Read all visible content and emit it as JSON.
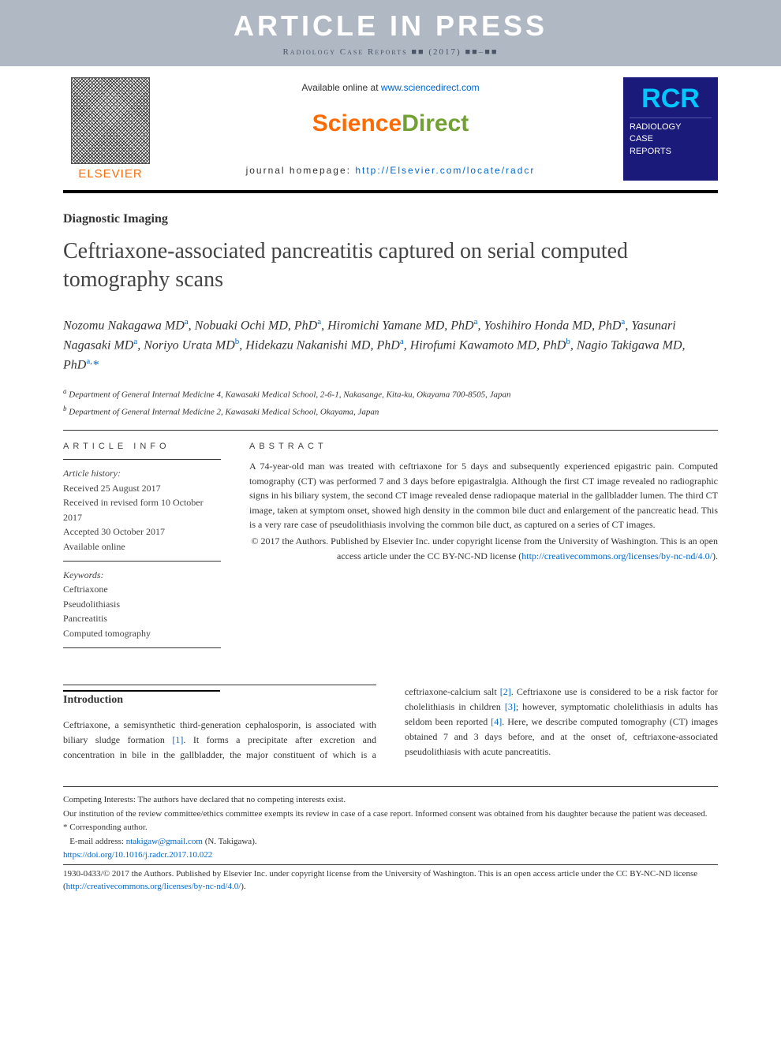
{
  "banner": {
    "aip": "ARTICLE IN PRESS",
    "citation": "Radiology Case Reports ■■ (2017) ■■–■■"
  },
  "header": {
    "available_text": "Available online at ",
    "available_link": "www.sciencedirect.com",
    "sd_logo_a": "Science",
    "sd_logo_b": "Direct",
    "homepage_label": "journal homepage: ",
    "homepage_url": "http://Elsevier.com/locate/radcr",
    "elsevier": "ELSEVIER",
    "rcr_big": "RCR",
    "rcr_l1": "RADIOLOGY",
    "rcr_l2": "CASE",
    "rcr_l3": "REPORTS"
  },
  "article": {
    "section": "Diagnostic Imaging",
    "title": "Ceftriaxone-associated pancreatitis captured on serial computed tomography scans",
    "authors_html": "Nozomu Nakagawa MD<sup>a</sup>, Nobuaki Ochi MD, PhD<sup>a</sup>, Hiromichi Yamane MD, PhD<sup>a</sup>, Yoshihiro Honda MD, PhD<sup>a</sup>, Yasunari Nagasaki MD<sup>a</sup>, Noriyo Urata MD<sup>b</sup>, Hidekazu Nakanishi MD, PhD<sup>a</sup>, Hirofumi Kawamoto MD, PhD<sup>b</sup>, Nagio Takigawa MD, PhD<sup>a,</sup><span class=\"ast\">*</span>",
    "affil_a": "Department of General Internal Medicine 4, Kawasaki Medical School, 2-6-1, Nakasange, Kita-ku, Okayama 700-8505, Japan",
    "affil_b": "Department of General Internal Medicine 2, Kawasaki Medical School, Okayama, Japan"
  },
  "article_info": {
    "heading": "article info",
    "history_label": "Article history:",
    "received": "Received 25 August 2017",
    "revised": "Received in revised form 10 October 2017",
    "accepted": "Accepted 30 October 2017",
    "online": "Available online",
    "keywords_label": "Keywords:",
    "kw1": "Ceftriaxone",
    "kw2": "Pseudolithiasis",
    "kw3": "Pancreatitis",
    "kw4": "Computed tomography"
  },
  "abstract": {
    "heading": "abstract",
    "body": "A 74-year-old man was treated with ceftriaxone for 5 days and subsequently experienced epigastric pain. Computed tomography (CT) was performed 7 and 3 days before epigastralgia. Although the first CT image revealed no radiographic signs in his biliary system, the second CT image revealed dense radiopaque material in the gallbladder lumen. The third CT image, taken at symptom onset, showed high density in the common bile duct and enlargement of the pancreatic head. This is a very rare case of pseudolithiasis involving the common bile duct, as captured on a series of CT images.",
    "copyright": "© 2017 the Authors. Published by Elsevier Inc. under copyright license from the University of Washington. This is an open access article under the CC BY-NC-ND license (",
    "cc_link": "http://creativecommons.org/licenses/by-nc-nd/4.0/",
    "copyright_close": ")."
  },
  "intro": {
    "heading": "Introduction",
    "body_html": "Ceftriaxone, a semisynthetic third-generation cephalosporin, is associated with biliary sludge formation <a href=\"#\">[1]</a>. It forms a precipitate after excretion and concentration in bile in the gallbladder, the major constituent of which is a ceftriaxone-calcium salt <a href=\"#\">[2]</a>. Ceftriaxone use is considered to be a risk factor for cholelithiasis in children <a href=\"#\">[3]</a>; however, symptomatic cholelithiasis in adults has seldom been reported <a href=\"#\">[4]</a>. Here, we describe computed tomography (CT) images obtained 7 and 3 days before, and at the onset of, ceftriaxone-associated pseudolithiasis with acute pancreatitis."
  },
  "footnotes": {
    "competing": "Competing Interests: The authors have declared that no competing interests exist.",
    "ethics": "Our institution of the review committee/ethics committee exempts its review in case of a case report. Informed consent was obtained from his daughter because the patient was deceased.",
    "corr": "* Corresponding author.",
    "email_label": "E-mail address: ",
    "email": "ntakigaw@gmail.com",
    "email_suffix": " (N. Takigawa).",
    "doi": "https://doi.org/10.1016/j.radcr.2017.10.022",
    "issn_copy": "1930-0433/© 2017 the Authors. Published by Elsevier Inc. under copyright license from the University of Washington. This is an open access article under the CC BY-NC-ND license (",
    "cc_link": "http://creativecommons.org/licenses/by-nc-nd/4.0/",
    "issn_close": ")."
  },
  "colors": {
    "link": "#0066cc",
    "orange": "#ff6b00",
    "green": "#72a033",
    "rcr_bg": "#1a1a7a",
    "rcr_cyan": "#00c8ff",
    "banner_bg": "#b0b8c4"
  }
}
